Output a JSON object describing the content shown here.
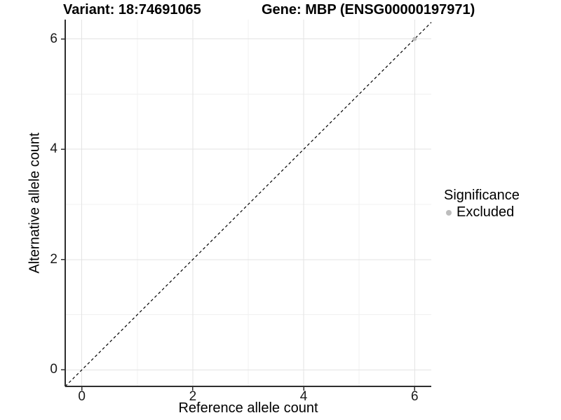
{
  "chart_data": {
    "type": "scatter",
    "title_left": "Variant: 18:74691065",
    "title_right": "Gene: MBP (ENSG00000197971)",
    "xlabel": "Reference allele count",
    "ylabel": "Alternative allele count",
    "xlim": [
      -0.3,
      6.3
    ],
    "ylim": [
      -0.3,
      6.35
    ],
    "x_major_ticks": [
      0,
      2,
      4,
      6
    ],
    "y_major_ticks": [
      0,
      2,
      4,
      6
    ],
    "x_minor_ticks": [
      1,
      3,
      5
    ],
    "y_minor_ticks": [
      1,
      3,
      5
    ],
    "grid": {
      "show": true,
      "major_color": "#e3e3e3",
      "minor_color": "#f0f0f0"
    },
    "axis_color": "#2e2e2e",
    "identity_line": {
      "slope": 1,
      "intercept": 0,
      "style": "dashed",
      "color": "#000000"
    },
    "series": [
      {
        "name": "Excluded",
        "color": "#bdbdbd",
        "points": [
          {
            "x": 6,
            "y": 6
          }
        ]
      }
    ],
    "legend": {
      "title": "Significance",
      "position": "right",
      "items": [
        {
          "label": "Excluded",
          "color": "#bdbdbd"
        }
      ]
    }
  }
}
